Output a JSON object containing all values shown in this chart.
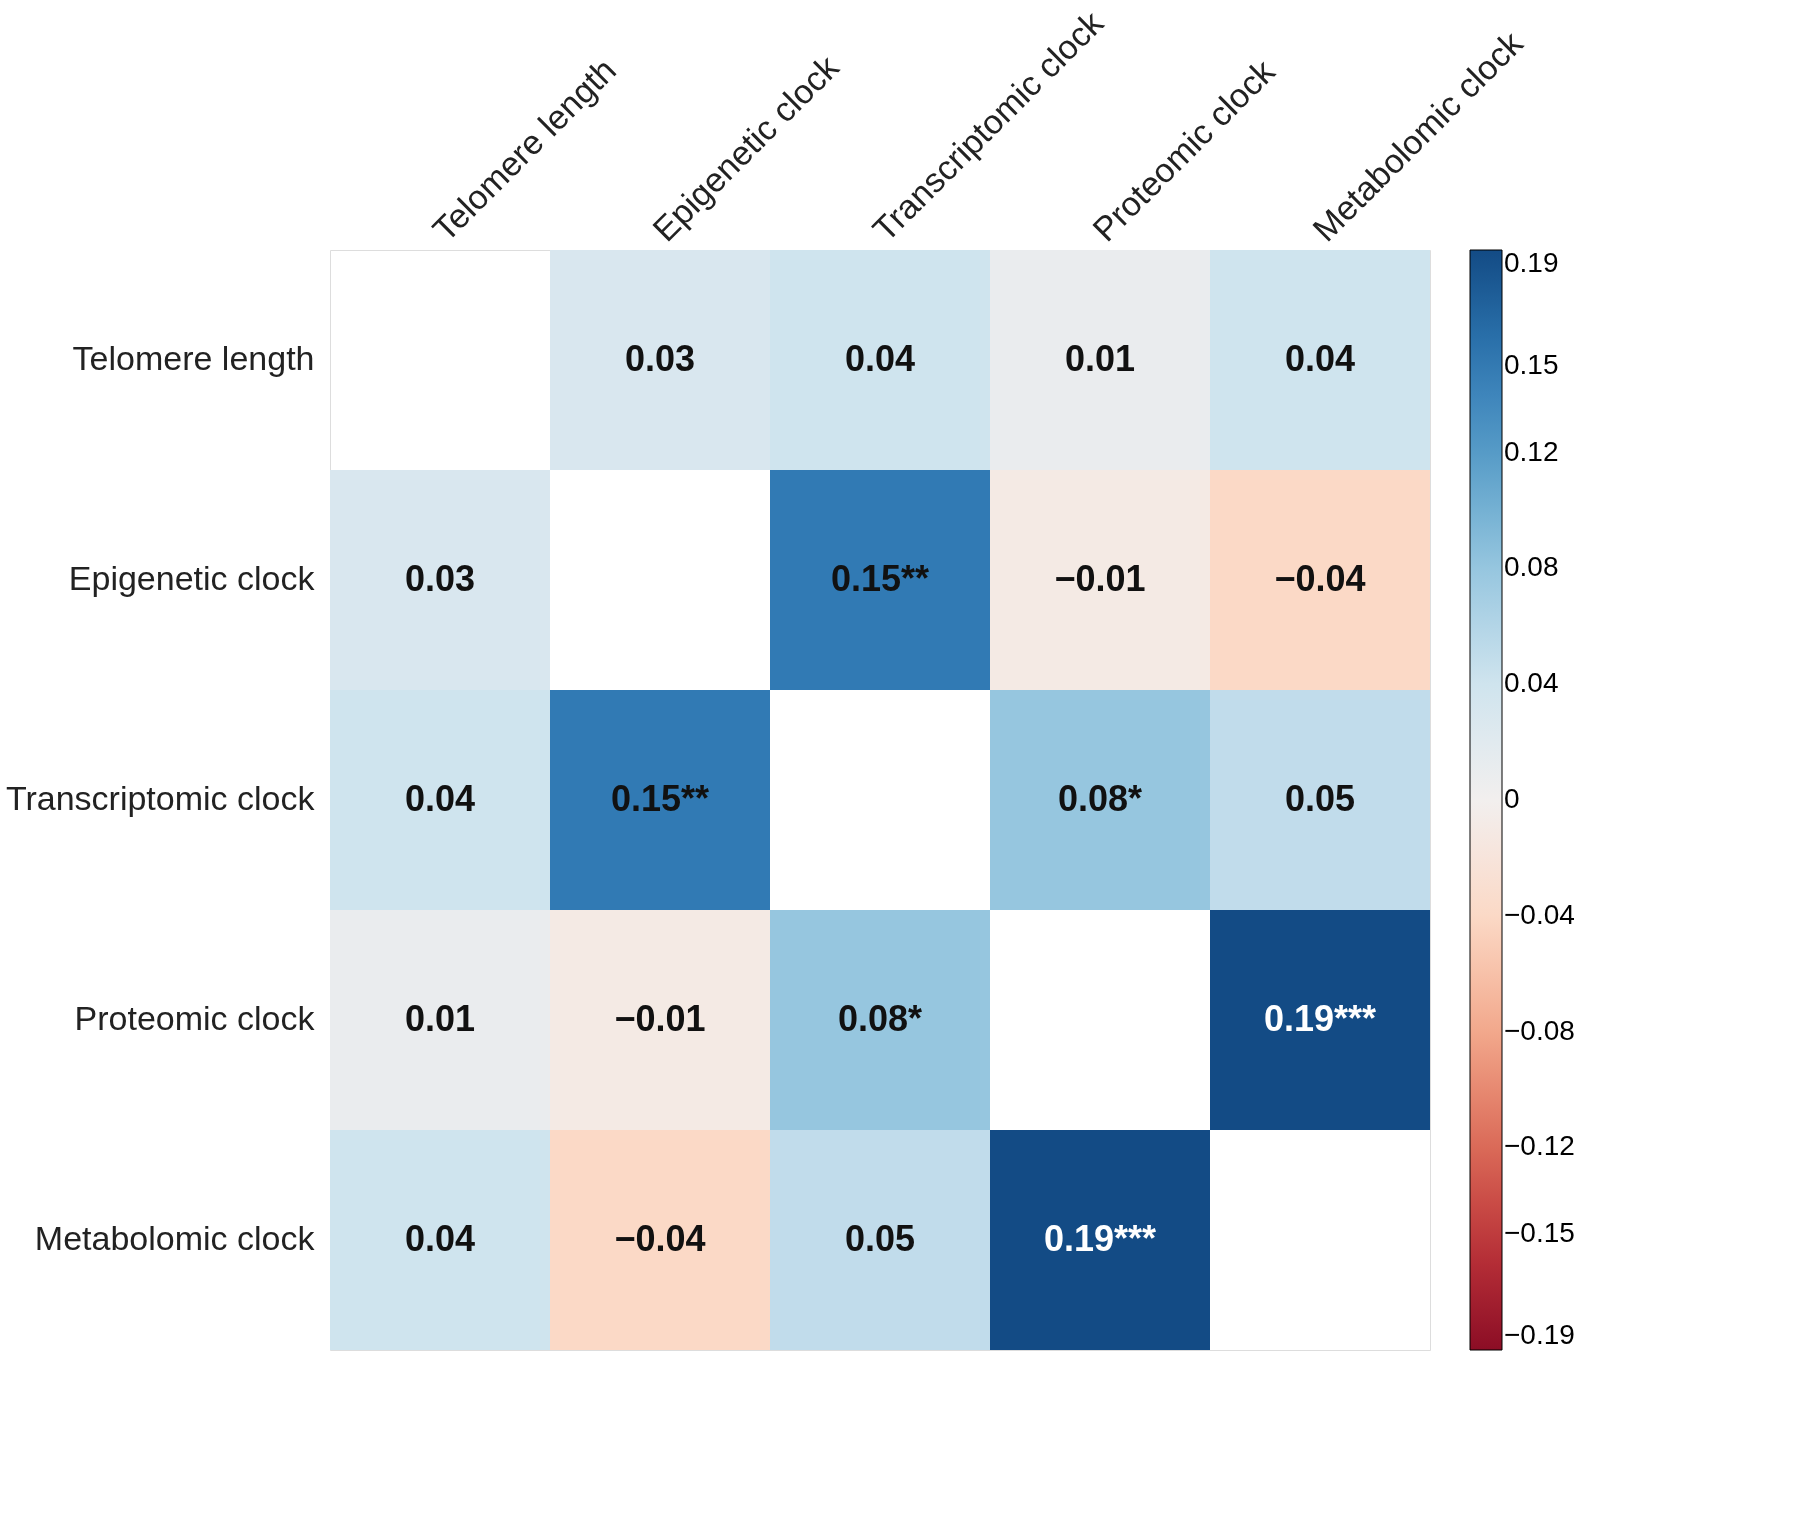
{
  "chart_data": {
    "type": "heatmap",
    "categories": [
      "Telomere length",
      "Epigenetic clock",
      "Transcriptomic clock",
      "Proteomic clock",
      "Metabolomic clock"
    ],
    "y_categories": [
      "Telomere length",
      "Epigenetic clock",
      "Transcriptomic clock",
      "Proteomic clock",
      "Metabolomic clock"
    ],
    "cells": [
      [
        null,
        0.03,
        0.04,
        0.01,
        0.04
      ],
      [
        0.03,
        null,
        0.15,
        -0.01,
        -0.04
      ],
      [
        0.04,
        0.15,
        null,
        0.08,
        0.05
      ],
      [
        0.01,
        -0.01,
        0.08,
        null,
        0.19
      ],
      [
        0.04,
        -0.04,
        0.05,
        0.19,
        null
      ]
    ],
    "cell_labels": [
      [
        null,
        "0.03",
        "0.04",
        "0.01",
        "0.04"
      ],
      [
        "0.03",
        null,
        "0.15**",
        "−0.01",
        "−0.04"
      ],
      [
        "0.04",
        "0.15**",
        null,
        "0.08*",
        "0.05"
      ],
      [
        "0.01",
        "−0.01",
        "0.08*",
        null,
        "0.19***"
      ],
      [
        "0.04",
        "−0.04",
        "0.05",
        "0.19***",
        null
      ]
    ],
    "clim": [
      -0.19,
      0.19
    ],
    "cticks": [
      {
        "value": 0.19,
        "label": "0.19"
      },
      {
        "value": 0.15,
        "label": "0.15"
      },
      {
        "value": 0.12,
        "label": "0.12"
      },
      {
        "value": 0.08,
        "label": "0.08"
      },
      {
        "value": 0.04,
        "label": "0.04"
      },
      {
        "value": 0,
        "label": "0"
      },
      {
        "value": -0.04,
        "label": "−0.04"
      },
      {
        "value": -0.08,
        "label": "−0.08"
      },
      {
        "value": -0.12,
        "label": "−0.12"
      },
      {
        "value": -0.15,
        "label": "−0.15"
      },
      {
        "value": -0.19,
        "label": "−0.19"
      }
    ]
  }
}
